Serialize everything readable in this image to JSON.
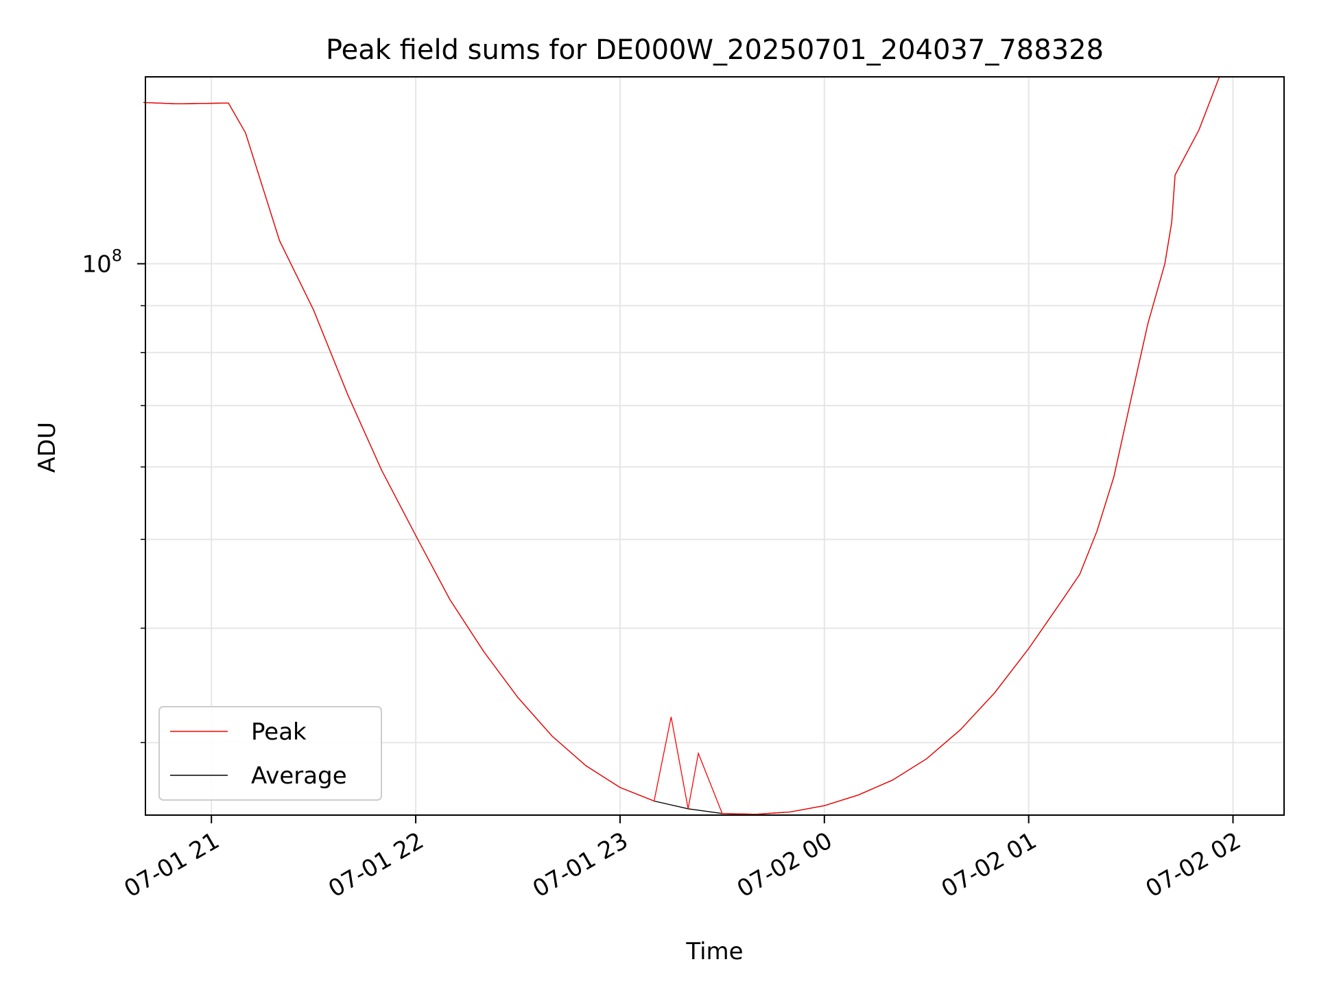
{
  "chart_data": {
    "type": "line",
    "title": "Peak field sums for DE000W_20250701_204037_788328",
    "xlabel": "Time",
    "ylabel": "ADU",
    "y_scale": "log",
    "xlim": [
      "2025-07-01 20:40:37",
      "2025-07-02 02:15:00"
    ],
    "ylim": [
      25000000,
      160000000
    ],
    "x_ticks": [
      "2025-07-01 21:00",
      "2025-07-01 22:00",
      "2025-07-01 23:00",
      "2025-07-02 00:00",
      "2025-07-02 01:00",
      "2025-07-02 02:00"
    ],
    "x_tick_labels": [
      "07-01 21",
      "07-01 22",
      "07-01 23",
      "07-02 00",
      "07-02 01",
      "07-02 02"
    ],
    "y_major_tick": 100000000,
    "y_major_tick_label": {
      "base": "10",
      "exp": "8"
    },
    "y_minor_ticks": [
      30000000,
      40000000,
      50000000,
      60000000,
      70000000,
      80000000,
      90000000,
      200000000
    ],
    "grid": true,
    "legend_position": "lower-left",
    "series": [
      {
        "name": "Average",
        "color": "#000000",
        "x": [
          "2025-07-01 20:40",
          "2025-07-01 20:50",
          "2025-07-01 21:05",
          "2025-07-01 21:10",
          "2025-07-01 21:20",
          "2025-07-01 21:30",
          "2025-07-01 21:40",
          "2025-07-01 21:50",
          "2025-07-01 22:00",
          "2025-07-01 22:10",
          "2025-07-01 22:20",
          "2025-07-01 22:30",
          "2025-07-01 22:40",
          "2025-07-01 22:50",
          "2025-07-01 23:00",
          "2025-07-01 23:10",
          "2025-07-01 23:20",
          "2025-07-01 23:30",
          "2025-07-01 23:40",
          "2025-07-01 23:50",
          "2025-07-02 00:00",
          "2025-07-02 00:10",
          "2025-07-02 00:20",
          "2025-07-02 00:30",
          "2025-07-02 00:40",
          "2025-07-02 00:50",
          "2025-07-02 01:00",
          "2025-07-02 01:10",
          "2025-07-02 01:15",
          "2025-07-02 01:20",
          "2025-07-02 01:25",
          "2025-07-02 01:30",
          "2025-07-02 01:35",
          "2025-07-02 01:40",
          "2025-07-02 01:42",
          "2025-07-02 01:43",
          "2025-07-02 01:50",
          "2025-07-02 01:56"
        ],
        "values": [
          150000000,
          149500000,
          149800000,
          139000000,
          106000000,
          89000000,
          72000000,
          59500000,
          50500000,
          43000000,
          37700000,
          33600000,
          30500000,
          28300000,
          26800000,
          25900000,
          25400000,
          25100000,
          25050000,
          25200000,
          25600000,
          26300000,
          27300000,
          28800000,
          31000000,
          34000000,
          38000000,
          43000000,
          45800000,
          51000000,
          58500000,
          71000000,
          86000000,
          100000000,
          111000000,
          125000000,
          140000000,
          160000000
        ]
      },
      {
        "name": "Peak",
        "color": "#ff0000",
        "x": [
          "2025-07-01 20:40",
          "2025-07-01 20:50",
          "2025-07-01 21:05",
          "2025-07-01 21:10",
          "2025-07-01 21:20",
          "2025-07-01 21:30",
          "2025-07-01 21:40",
          "2025-07-01 21:50",
          "2025-07-01 22:00",
          "2025-07-01 22:10",
          "2025-07-01 22:20",
          "2025-07-01 22:30",
          "2025-07-01 22:40",
          "2025-07-01 22:50",
          "2025-07-01 23:00",
          "2025-07-01 23:10",
          "2025-07-01 23:15",
          "2025-07-01 23:20",
          "2025-07-01 23:23",
          "2025-07-01 23:30",
          "2025-07-01 23:40",
          "2025-07-01 23:50",
          "2025-07-02 00:00",
          "2025-07-02 00:10",
          "2025-07-02 00:20",
          "2025-07-02 00:30",
          "2025-07-02 00:40",
          "2025-07-02 00:50",
          "2025-07-02 01:00",
          "2025-07-02 01:10",
          "2025-07-02 01:15",
          "2025-07-02 01:20",
          "2025-07-02 01:25",
          "2025-07-02 01:30",
          "2025-07-02 01:35",
          "2025-07-02 01:40",
          "2025-07-02 01:42",
          "2025-07-02 01:43",
          "2025-07-02 01:50",
          "2025-07-02 01:56"
        ],
        "values": [
          150000000,
          149500000,
          149800000,
          139000000,
          106000000,
          89000000,
          72000000,
          59500000,
          50500000,
          43000000,
          37700000,
          33600000,
          30500000,
          28300000,
          26800000,
          25900000,
          32000000,
          25400000,
          29200000,
          25100000,
          25050000,
          25200000,
          25600000,
          26300000,
          27300000,
          28800000,
          31000000,
          34000000,
          38000000,
          43000000,
          45800000,
          51000000,
          58500000,
          71000000,
          86000000,
          100000000,
          111000000,
          125000000,
          140000000,
          160000000
        ]
      }
    ]
  }
}
